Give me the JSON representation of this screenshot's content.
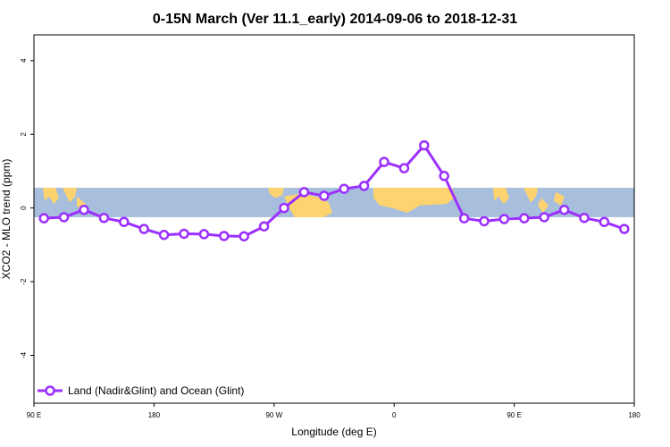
{
  "chart_data": {
    "type": "line",
    "title": "0-15N March (Ver 11.1_early)   2014-09-06 to 2018-12-31",
    "xlabel": "Longitude (deg E)",
    "ylabel": "XCO2 - MLO trend (ppm)",
    "xlim": [
      30,
      390
    ],
    "ylim": [
      -5.3,
      4.7
    ],
    "x_ticks": [
      {
        "value": 30,
        "label": "90 E"
      },
      {
        "value": 102,
        "label": "180"
      },
      {
        "value": 174,
        "label": "90 W"
      },
      {
        "value": 246,
        "label": "0"
      },
      {
        "value": 318,
        "label": "90 E"
      },
      {
        "value": 390,
        "label": "180"
      }
    ],
    "y_ticks": [
      {
        "value": -4,
        "label": "-4"
      },
      {
        "value": -2,
        "label": "-2"
      },
      {
        "value": 0,
        "label": "0"
      },
      {
        "value": 2,
        "label": "2"
      },
      {
        "value": 4,
        "label": "4"
      }
    ],
    "background_band": {
      "y_min": -0.25,
      "y_max": 0.55,
      "ocean_color": "#a8bedd",
      "land_color": "#fcd36e"
    },
    "series": [
      {
        "name": "Land (Nadir&Glint) and Ocean (Glint)",
        "color": "#9b30ff",
        "x": [
          36,
          48,
          60,
          72,
          84,
          96,
          108,
          120,
          132,
          144,
          156,
          168,
          180,
          192,
          204,
          216,
          228,
          240,
          252,
          264,
          276,
          288,
          300,
          312,
          324,
          336,
          348,
          360,
          372,
          384
        ],
        "y": [
          -0.28,
          -0.25,
          -0.05,
          -0.27,
          -0.38,
          -0.57,
          -0.73,
          -0.7,
          -0.71,
          -0.76,
          -0.77,
          -0.5,
          0.0,
          0.43,
          0.33,
          0.52,
          0.6,
          1.25,
          1.08,
          1.7,
          0.87,
          -0.28,
          -0.36,
          -0.3,
          -0.28,
          -0.25,
          -0.05,
          -0.27,
          -0.38,
          -0.57
        ]
      }
    ],
    "legend_position": "bottom-left",
    "grid": false
  }
}
